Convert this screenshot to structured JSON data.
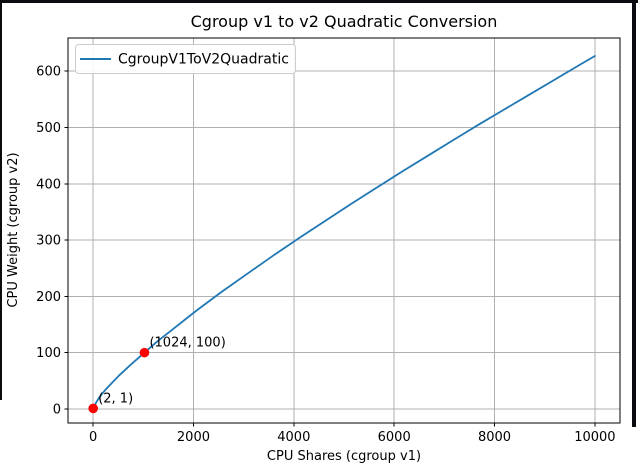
{
  "chart_data": {
    "type": "line",
    "title": "Cgroup v1 to v2 Quadratic Conversion",
    "xlabel": "CPU Shares (cgroup v1)",
    "ylabel": "CPU Weight (cgroup v2)",
    "xlim": [
      -500,
      10500
    ],
    "ylim": [
      -25,
      659
    ],
    "xticks": [
      0,
      2000,
      4000,
      6000,
      8000,
      10000
    ],
    "yticks": [
      0,
      100,
      200,
      300,
      400,
      500,
      600
    ],
    "grid": true,
    "grid_color": "#b0b0b0",
    "background_color": "#ffffff",
    "legend": {
      "position": "upper-left",
      "label": "CgroupV1ToV2Quadratic",
      "line_color": "#1f77b4",
      "border_color": "#cccccc"
    },
    "series": [
      {
        "name": "CgroupV1ToV2Quadratic",
        "color": "#1f77b4",
        "x": [
          2,
          64,
          128,
          256,
          512,
          768,
          1024,
          1280,
          1536,
          2048,
          2560,
          3072,
          3584,
          4096,
          4608,
          5120,
          5632,
          6144,
          6656,
          7168,
          7680,
          8192,
          8704,
          9216,
          9728,
          10000
        ],
        "y": [
          1,
          12,
          21,
          35,
          59,
          80,
          100,
          120,
          138,
          174,
          208,
          240,
          272,
          303,
          333,
          363,
          392,
          421,
          449,
          477,
          505,
          532,
          559,
          586,
          613,
          627
        ]
      }
    ],
    "annotated_points": [
      {
        "x": 2,
        "y": 1,
        "label": "(2, 1)",
        "marker_color": "#ff0000"
      },
      {
        "x": 1024,
        "y": 100,
        "label": "(1024, 100)",
        "marker_color": "#ff0000"
      }
    ]
  }
}
